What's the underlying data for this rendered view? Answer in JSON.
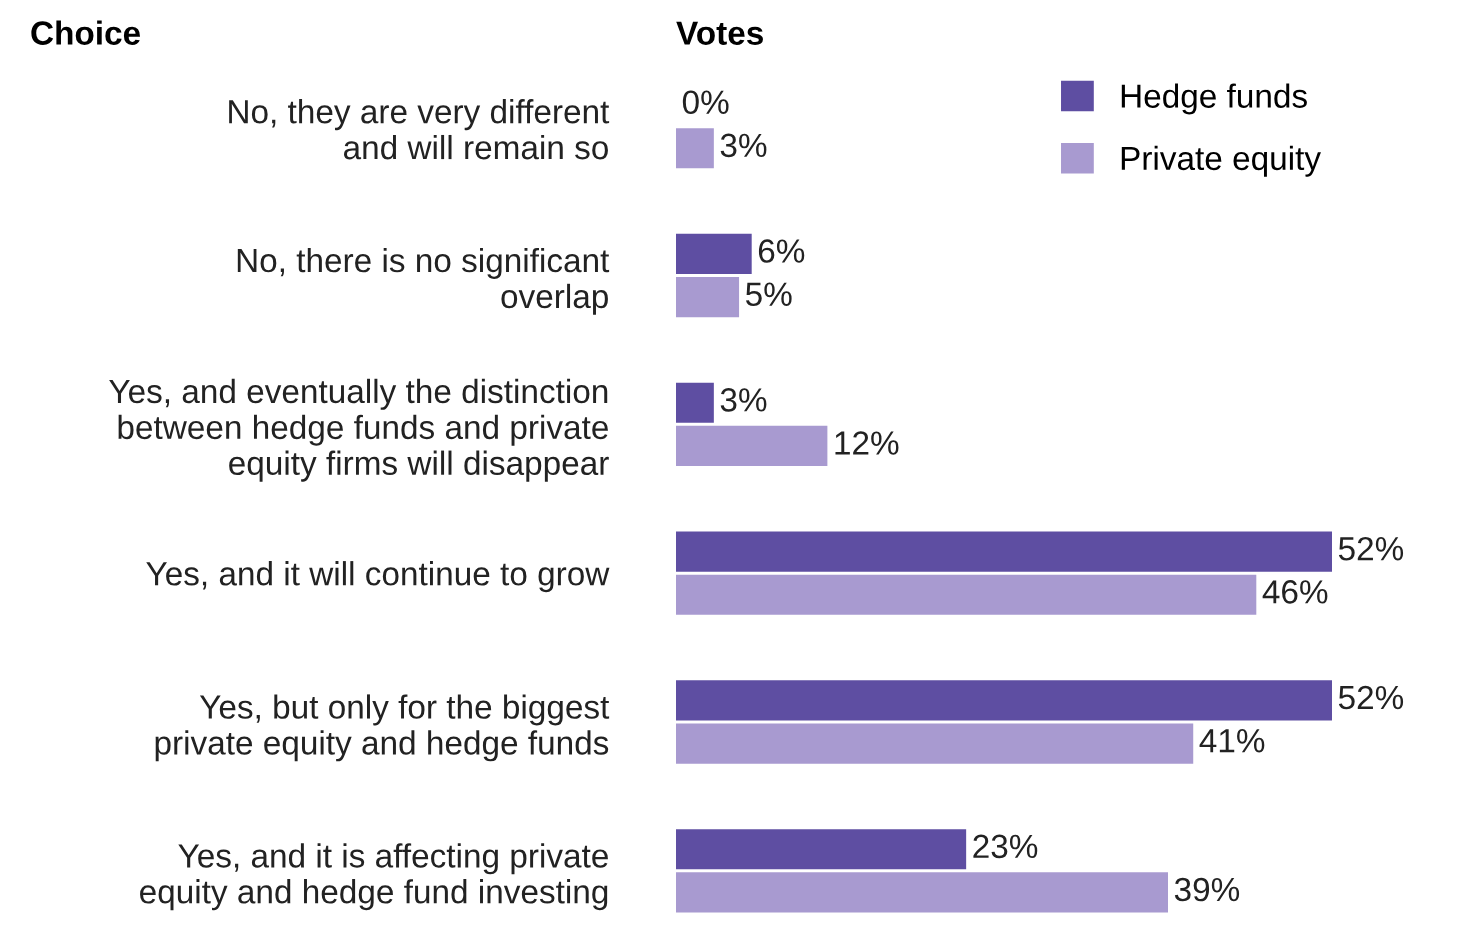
{
  "chart_data": {
    "type": "bar",
    "orientation": "horizontal",
    "xlabel": "Votes",
    "ylabel": "Choice",
    "categories": [
      "No, they are very different\nand will remain so",
      "No, there is no significant\noverlap",
      "Yes, and eventually the distinction\nbetween hedge funds and private\nequity firms will disappear",
      "Yes, and it will continue to grow",
      "Yes, but only for the biggest\nprivate equity and hedge funds",
      "Yes, and it is affecting private\nequity and hedge fund investing"
    ],
    "series": [
      {
        "name": "Hedge funds",
        "color": "#5e4ea2",
        "values": [
          0,
          6,
          3,
          52,
          52,
          23
        ],
        "value_labels": [
          "0%",
          "6%",
          "3%",
          "52%",
          "52%",
          "23%"
        ]
      },
      {
        "name": "Private equity",
        "color": "#a89ad0",
        "values": [
          3,
          5,
          12,
          46,
          41,
          39
        ],
        "value_labels": [
          "3%",
          "5%",
          "12%",
          "46%",
          "41%",
          "39%"
        ]
      }
    ],
    "grid": false,
    "legend": "top right"
  }
}
